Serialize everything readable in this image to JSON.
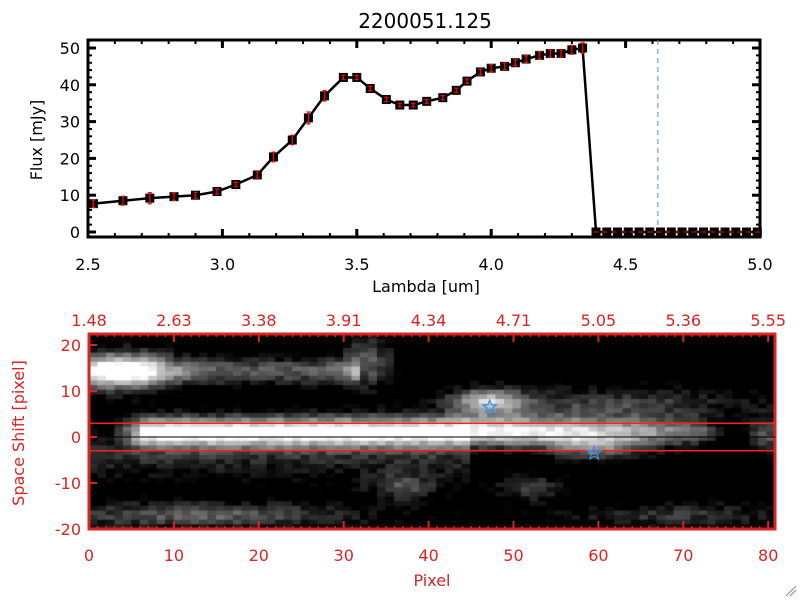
{
  "chart_data": [
    {
      "type": "line",
      "title": "2200051.125",
      "xlabel": "Lambda [um]",
      "ylabel": "Flux [mJy]",
      "xlim": [
        2.5,
        5.0
      ],
      "ylim": [
        -1,
        51
      ],
      "xticks": [
        "2.5",
        "3.0",
        "3.5",
        "4.0",
        "4.5",
        "5.0"
      ],
      "yticks": [
        "0",
        "10",
        "20",
        "30",
        "40",
        "50"
      ],
      "grid": false,
      "series": [
        {
          "x": [
            2.52,
            2.63,
            2.73,
            2.82,
            2.9,
            2.98,
            3.05,
            3.13,
            3.19,
            3.26,
            3.32,
            3.38,
            3.45,
            3.5,
            3.55,
            3.61,
            3.66,
            3.71,
            3.76,
            3.82,
            3.87,
            3.91,
            3.96,
            4.0,
            4.05,
            4.09,
            4.13,
            4.18,
            4.22,
            4.26,
            4.3,
            4.34,
            4.39,
            4.43,
            4.47,
            4.51,
            4.55,
            4.59,
            4.63,
            4.67,
            4.71,
            4.75,
            4.79,
            4.83,
            4.87,
            4.91,
            4.95,
            4.99
          ],
          "y": [
            7.7,
            8.5,
            9.2,
            9.6,
            10.0,
            11.0,
            12.9,
            15.5,
            20.4,
            25.0,
            31.0,
            37.0,
            42.0,
            42.0,
            39.0,
            36.0,
            34.5,
            34.5,
            35.5,
            36.5,
            38.5,
            41.0,
            43.5,
            44.5,
            45.0,
            46.0,
            47.0,
            48.0,
            48.5,
            48.5,
            49.5,
            50.0,
            0,
            0,
            0,
            0,
            0,
            0,
            0,
            0,
            0,
            0,
            0,
            0,
            0,
            0,
            0,
            0
          ],
          "yerr": [
            1.0,
            1.2,
            1.5,
            1.0,
            0.8,
            0.7,
            0.6,
            0.8,
            1.3,
            1.3,
            1.6,
            1.4,
            0.6,
            0.6,
            0.6,
            0.6,
            0.5,
            0.5,
            0.5,
            0.6,
            0.6,
            0.6,
            0.8,
            1.0,
            0.9,
            0.8,
            0.9,
            1.0,
            1.0,
            1.0,
            1.2,
            1.4,
            0,
            0,
            0,
            0,
            0,
            0,
            0,
            0,
            0,
            0,
            0,
            0,
            0,
            0,
            0,
            0
          ]
        }
      ],
      "reference_lines": {
        "vertical_x": 4.62,
        "horizontal_y": 0
      },
      "colors": {
        "line": "#000000",
        "errorbar": "#ff0000",
        "marker": "#000000",
        "vline": "#4a90e2",
        "hline": "#ff0000"
      }
    },
    {
      "type": "heatmap",
      "xlabel": "Pixel",
      "ylabel": "Space Shift [pixel]",
      "xlim": [
        0,
        81
      ],
      "ylim": [
        -21,
        21
      ],
      "xticks": [
        "0",
        "10",
        "20",
        "30",
        "40",
        "50",
        "60",
        "70",
        "80"
      ],
      "yticks": [
        "20",
        "10",
        "0",
        "-10",
        "-20"
      ],
      "top_xticks": [
        "1.48",
        "2.63",
        "3.38",
        "3.91",
        "4.34",
        "4.71",
        "5.05",
        "5.36",
        "5.55"
      ],
      "extraction_lines_y": [
        3,
        -3
      ],
      "center_line_y": 0,
      "markers": [
        {
          "shape": "star",
          "x": 47.2,
          "y": 6.5
        },
        {
          "shape": "star",
          "x": 59.5,
          "y": -3.5
        }
      ],
      "colors": {
        "axes": "#dd2222",
        "marker": "#3a8fe8",
        "colormap": "grayscale"
      }
    }
  ]
}
